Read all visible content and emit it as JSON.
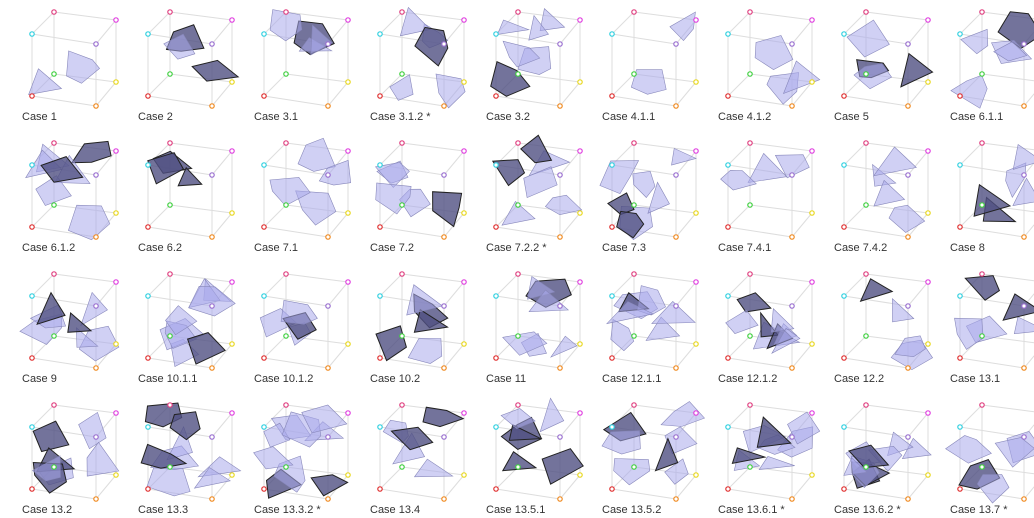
{
  "cases": [
    "Case 1",
    "Case 2",
    "Case 3.1",
    "Case 3.1.2 *",
    "Case 3.2",
    "Case 4.1.1",
    "Case 4.1.2",
    "Case 5",
    "Case 6.1.1",
    "Case 6.1.2",
    "Case 6.2",
    "Case 7.1",
    "Case 7.2",
    "Case 7.2.2 *",
    "Case 7.3",
    "Case 7.4.1",
    "Case 7.4.2",
    "Case 8",
    "Case 9",
    "Case 10.1.1",
    "Case 10.1.2",
    "Case 10.2",
    "Case 11",
    "Case 12.1.1",
    "Case 12.1.2",
    "Case 12.2",
    "Case 13.1",
    "Case 13.2",
    "Case 13.3",
    "Case 13.3.2 *",
    "Case 13.4",
    "Case 13.5.1",
    "Case 13.5.2",
    "Case 13.6.1 *",
    "Case 13.6.2 *",
    "Case 13.7 *"
  ]
}
